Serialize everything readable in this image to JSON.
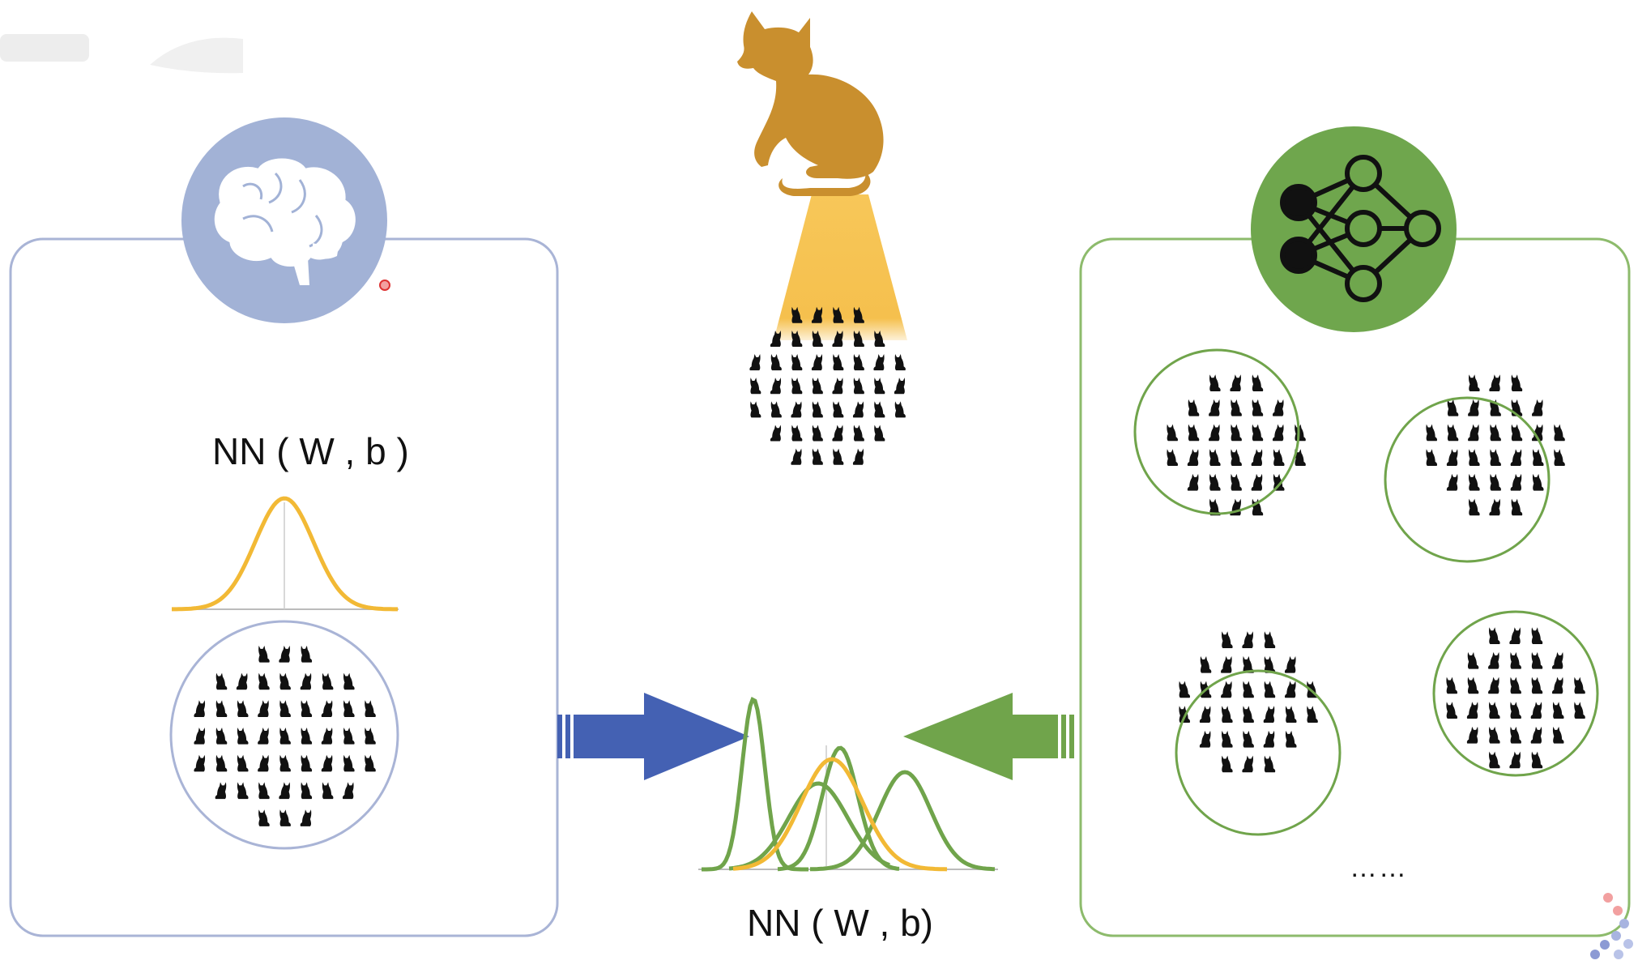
{
  "left_panel": {
    "formula": "NN ( W , b )",
    "icon": "brain-icon",
    "accent_color": "#9fb0d4"
  },
  "center": {
    "formula": "NN ( W , b)",
    "icon": "cat-silhouette-icon",
    "cat_color": "#c98f2e",
    "beam_color": "#f4b93a"
  },
  "right_panel": {
    "icon": "neural-network-icon",
    "accent_color": "#6fa64d",
    "ellipsis": "……"
  },
  "arrows": {
    "left_to_center_color": "#4461b3",
    "right_to_center_color": "#70a44b"
  }
}
